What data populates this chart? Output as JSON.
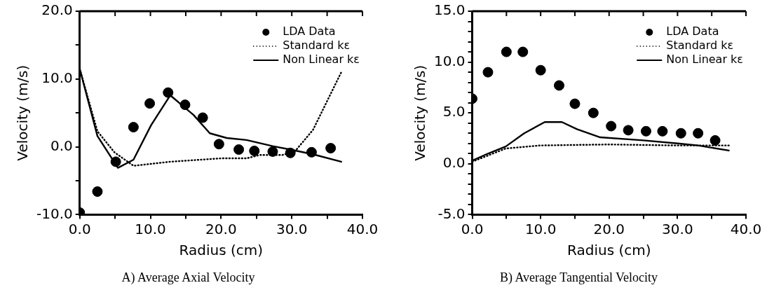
{
  "chart_data": [
    {
      "type": "scatter",
      "title": "A) Average Axial Velocity",
      "xlabel": "Radius (cm)",
      "ylabel": "Velocity (m/s)",
      "legend": "top right",
      "grid": false,
      "xlim": [
        0,
        40
      ],
      "xticks": [
        {
          "value": 0,
          "label": "0.0"
        },
        {
          "value": 5,
          "label": null
        },
        {
          "value": 10,
          "label": "10.0"
        },
        {
          "value": 15,
          "label": null
        },
        {
          "value": 20,
          "label": "20.0"
        },
        {
          "value": 25,
          "label": null
        },
        {
          "value": 30,
          "label": "30.0"
        },
        {
          "value": 35,
          "label": null
        },
        {
          "value": 40,
          "label": "40.0"
        }
      ],
      "ylim": [
        -10,
        20
      ],
      "yticks": [
        {
          "value": -10,
          "label": "-10.0"
        },
        {
          "value": -5,
          "label": null
        },
        {
          "value": 0,
          "label": "0.0"
        },
        {
          "value": 5,
          "label": null
        },
        {
          "value": 10,
          "label": "10.0"
        },
        {
          "value": 15,
          "label": null
        },
        {
          "value": 20,
          "label": "20.0"
        }
      ],
      "series": [
        {
          "name": "LDA Data",
          "marker": "circle",
          "color": "#000000",
          "x": [
            0,
            2.5,
            5.1,
            7.6,
            9.9,
            12.5,
            14.9,
            17.4,
            19.7,
            22.5,
            24.7,
            27.3,
            29.8,
            32.8,
            35.5
          ],
          "values": [
            -9.7,
            -6.6,
            -2.2,
            2.9,
            6.4,
            8.0,
            6.2,
            4.3,
            0.4,
            -0.4,
            -0.6,
            -0.7,
            -0.9,
            -0.8,
            -0.2
          ]
        },
        {
          "name": "Standard kε",
          "type": "line",
          "line_style": "dotted",
          "color": "#000000",
          "x": [
            0,
            2.5,
            4.9,
            7.6,
            12.8,
            20,
            23.6,
            25.5,
            28.7,
            30.5,
            33,
            37
          ],
          "values": [
            11.5,
            2.3,
            -0.8,
            -2.8,
            -2.2,
            -1.7,
            -1.7,
            -1.2,
            -1.2,
            -0.6,
            2.5,
            11
          ]
        },
        {
          "name": "Non Linear kε",
          "type": "line",
          "line_style": "solid",
          "color": "#000000",
          "x": [
            0,
            2.5,
            5.4,
            7.6,
            10.1,
            12.8,
            16.1,
            18.4,
            20.8,
            23.6,
            27.3,
            29.8,
            33,
            37
          ],
          "values": [
            11.5,
            1.6,
            -3.1,
            -1.9,
            3.2,
            7.6,
            4.7,
            2.0,
            1.3,
            1.0,
            0.1,
            -0.4,
            -1.1,
            -2.2
          ]
        }
      ]
    },
    {
      "type": "scatter",
      "title": "B) Average Tangential Velocity",
      "xlabel": "Radius (cm)",
      "ylabel": "Velocity (m/s)",
      "legend": "top right",
      "grid": false,
      "xlim": [
        0,
        40
      ],
      "xticks": [
        {
          "value": 0,
          "label": "0.0"
        },
        {
          "value": 5,
          "label": null
        },
        {
          "value": 10,
          "label": "10.0"
        },
        {
          "value": 15,
          "label": null
        },
        {
          "value": 20,
          "label": "20.0"
        },
        {
          "value": 25,
          "label": null
        },
        {
          "value": 30,
          "label": "30.0"
        },
        {
          "value": 35,
          "label": null
        },
        {
          "value": 40,
          "label": "40.0"
        }
      ],
      "ylim": [
        -5,
        15
      ],
      "yticks": [
        {
          "value": -5,
          "label": "-5.0"
        },
        {
          "value": -4,
          "label": null
        },
        {
          "value": -3,
          "label": null
        },
        {
          "value": -2,
          "label": null
        },
        {
          "value": -1,
          "label": null
        },
        {
          "value": 0,
          "label": "0.0"
        },
        {
          "value": 1,
          "label": null
        },
        {
          "value": 2,
          "label": null
        },
        {
          "value": 3,
          "label": null
        },
        {
          "value": 4,
          "label": null
        },
        {
          "value": 5,
          "label": "5.0"
        },
        {
          "value": 6,
          "label": null
        },
        {
          "value": 7,
          "label": null
        },
        {
          "value": 8,
          "label": null
        },
        {
          "value": 9,
          "label": null
        },
        {
          "value": 10,
          "label": "10.0"
        },
        {
          "value": 11,
          "label": null
        },
        {
          "value": 12,
          "label": null
        },
        {
          "value": 13,
          "label": null
        },
        {
          "value": 14,
          "label": null
        },
        {
          "value": 15,
          "label": "15.0"
        }
      ],
      "series": [
        {
          "name": "LDA Data",
          "marker": "circle",
          "color": "#000000",
          "x": [
            0,
            2.3,
            5,
            7.4,
            10,
            12.7,
            15,
            17.7,
            20.3,
            22.8,
            25.4,
            27.8,
            30.5,
            33,
            35.5
          ],
          "values": [
            6.4,
            9.0,
            11.0,
            11.0,
            9.2,
            7.7,
            5.9,
            5.0,
            3.7,
            3.3,
            3.2,
            3.2,
            3.0,
            3.0,
            2.3
          ]
        },
        {
          "name": "Standard kε",
          "type": "line",
          "line_style": "dotted",
          "color": "#000000",
          "x": [
            0,
            4.9,
            9.9,
            20,
            30,
            37.5
          ],
          "values": [
            0.2,
            1.5,
            1.8,
            1.9,
            1.8,
            1.8
          ]
        },
        {
          "name": "Non Linear kε",
          "type": "line",
          "line_style": "solid",
          "color": "#000000",
          "x": [
            0,
            2.3,
            4.9,
            7.6,
            10.6,
            13.1,
            15.3,
            18.7,
            25,
            30,
            33,
            37.5
          ],
          "values": [
            0.3,
            1.0,
            1.7,
            3.0,
            4.1,
            4.1,
            3.4,
            2.6,
            2.3,
            2.0,
            1.8,
            1.3
          ]
        }
      ]
    }
  ]
}
